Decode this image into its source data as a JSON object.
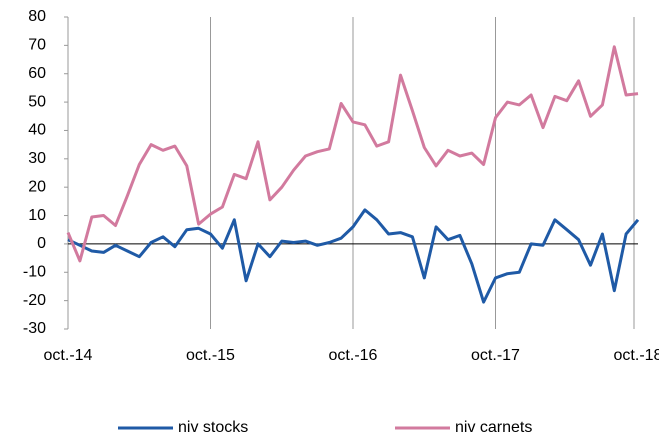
{
  "chart_data": {
    "type": "line",
    "categories": [
      "oct.-14",
      null,
      null,
      null,
      null,
      null,
      null,
      null,
      null,
      null,
      null,
      null,
      "oct.-15",
      null,
      null,
      null,
      null,
      null,
      null,
      null,
      null,
      null,
      null,
      null,
      "oct.-16",
      null,
      null,
      null,
      null,
      null,
      null,
      null,
      null,
      null,
      null,
      null,
      "oct.-17",
      null,
      null,
      null,
      null,
      null,
      null,
      null,
      null,
      null,
      null,
      null,
      "oct.-18"
    ],
    "series": [
      {
        "name": "niv stocks",
        "color": "#1f5aa6",
        "values": [
          1.5,
          -0.5,
          -2.5,
          -3,
          -0.5,
          -2.5,
          -4.5,
          0.5,
          2.5,
          -1,
          5,
          5.5,
          3.5,
          -1.5,
          8.5,
          -13,
          0,
          -4.5,
          1,
          0.5,
          1,
          -0.5,
          0.5,
          2,
          6,
          12,
          8.5,
          3.5,
          4,
          2.5,
          -12,
          6,
          1.5,
          3,
          -7,
          -20.5,
          -12,
          -10.5,
          -10,
          0,
          -0.5,
          8.5,
          5,
          1.5,
          -7.5,
          3.5,
          -16.5,
          3.5,
          8.5
        ]
      },
      {
        "name": "niv carnets",
        "color": "#d27a9e",
        "values": [
          4,
          -6,
          9.5,
          10,
          6.5,
          17,
          28,
          35,
          33,
          34.5,
          27.5,
          7,
          10.5,
          13,
          24.5,
          23,
          36,
          15.5,
          20,
          26,
          31,
          32.5,
          33.5,
          49.5,
          43,
          42,
          34.5,
          36,
          59.5,
          47,
          34,
          27.5,
          33,
          31,
          32,
          28,
          44.5,
          50,
          49,
          52.5,
          41,
          52,
          50.5,
          57.5,
          45,
          49,
          69.5,
          52.5,
          53
        ]
      }
    ],
    "ylim": [
      -30,
      80
    ],
    "yticks": [
      -30,
      -20,
      -10,
      0,
      10,
      20,
      30,
      40,
      50,
      60,
      70,
      80
    ],
    "grid": "x",
    "legend": "bottom"
  }
}
